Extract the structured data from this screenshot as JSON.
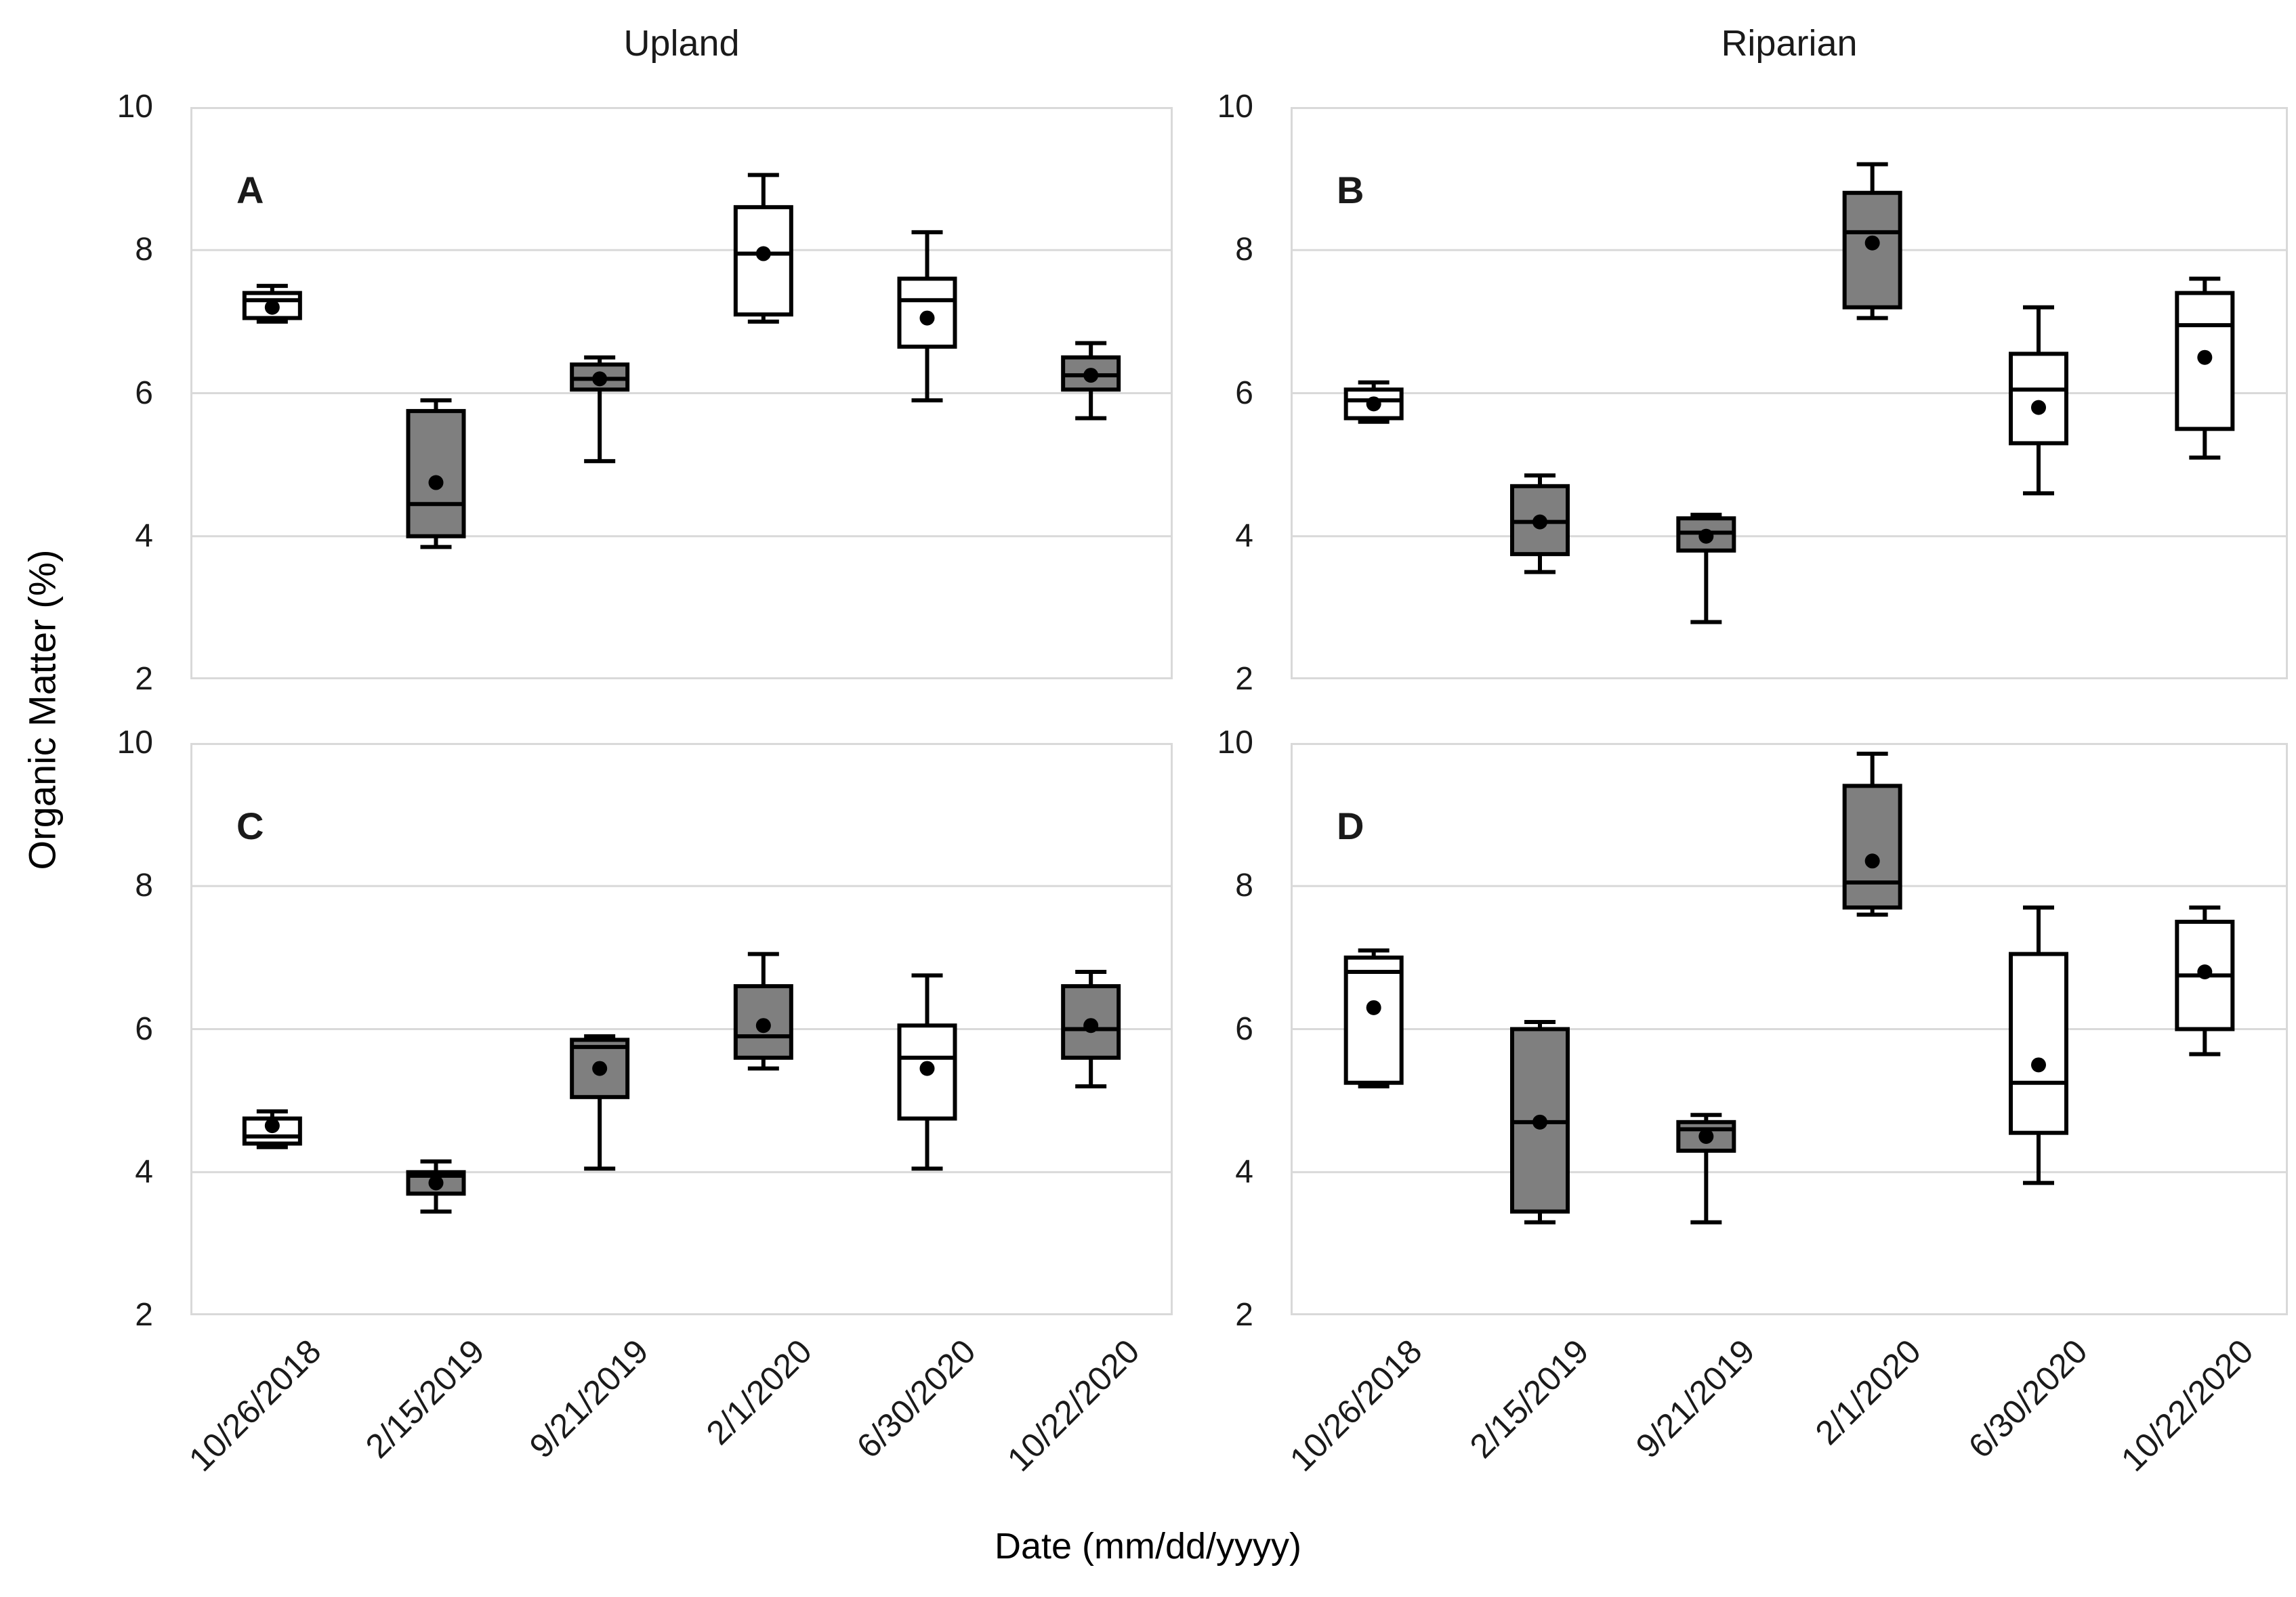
{
  "figure": {
    "column_titles": [
      "Upland",
      "Riparian"
    ],
    "xlabel": "Date (mm/dd/yyyy)",
    "ylabel": "Organic Matter (%)",
    "style": {
      "box_gray_fill": "#7f7f7f",
      "box_white_fill": "#ffffff",
      "box_stroke": "#000000",
      "gridline_color": "#d9d9d9",
      "mean_marker": "filled-circle"
    }
  },
  "chart_data": {
    "type": "box",
    "layout": "2x2-panels",
    "xlabel": "Date (mm/dd/yyyy)",
    "ylabel": "Organic Matter (%)",
    "ylim": [
      2,
      10
    ],
    "y_ticks": [
      10,
      8,
      6,
      4,
      2
    ],
    "grid": "horizontal-on",
    "categories": [
      "10/26/2018",
      "2/15/2019",
      "9/21/2019",
      "2/1/2020",
      "6/30/2020",
      "10/22/2020"
    ],
    "column_titles": [
      "Upland",
      "Riparian"
    ],
    "panels": [
      {
        "label": "A",
        "column": "Upland",
        "row": 0,
        "col": 0,
        "boxes": [
          {
            "date": "10/26/2018",
            "fill": "white",
            "min": 7.0,
            "q1": 7.05,
            "median": 7.3,
            "q3": 7.4,
            "max": 7.5,
            "mean": 7.2
          },
          {
            "date": "2/15/2019",
            "fill": "gray",
            "min": 3.85,
            "q1": 4.0,
            "median": 4.45,
            "q3": 5.75,
            "max": 5.9,
            "mean": 4.75
          },
          {
            "date": "9/21/2019",
            "fill": "gray",
            "min": 5.05,
            "q1": 6.05,
            "median": 6.2,
            "q3": 6.4,
            "max": 6.5,
            "mean": 6.2
          },
          {
            "date": "2/1/2020",
            "fill": "white",
            "min": 7.0,
            "q1": 7.1,
            "median": 7.95,
            "q3": 8.6,
            "max": 9.05,
            "mean": 7.95
          },
          {
            "date": "6/30/2020",
            "fill": "white",
            "min": 5.9,
            "q1": 6.65,
            "median": 7.3,
            "q3": 7.6,
            "max": 8.25,
            "mean": 7.05
          },
          {
            "date": "10/22/2020",
            "fill": "gray",
            "min": 5.65,
            "q1": 6.05,
            "median": 6.25,
            "q3": 6.5,
            "max": 6.7,
            "mean": 6.25
          }
        ]
      },
      {
        "label": "B",
        "column": "Riparian",
        "row": 0,
        "col": 1,
        "boxes": [
          {
            "date": "10/26/2018",
            "fill": "white",
            "min": 5.6,
            "q1": 5.65,
            "median": 5.9,
            "q3": 6.05,
            "max": 6.15,
            "mean": 5.85
          },
          {
            "date": "2/15/2019",
            "fill": "gray",
            "min": 3.5,
            "q1": 3.75,
            "median": 4.2,
            "q3": 4.7,
            "max": 4.85,
            "mean": 4.2
          },
          {
            "date": "9/21/2019",
            "fill": "gray",
            "min": 2.8,
            "q1": 3.8,
            "median": 4.05,
            "q3": 4.25,
            "max": 4.3,
            "mean": 4.0
          },
          {
            "date": "2/1/2020",
            "fill": "gray",
            "min": 7.05,
            "q1": 7.2,
            "median": 8.25,
            "q3": 8.8,
            "max": 9.2,
            "mean": 8.1
          },
          {
            "date": "6/30/2020",
            "fill": "white",
            "min": 4.6,
            "q1": 5.3,
            "median": 6.05,
            "q3": 6.55,
            "max": 7.2,
            "mean": 5.8
          },
          {
            "date": "10/22/2020",
            "fill": "white",
            "min": 5.1,
            "q1": 5.5,
            "median": 6.95,
            "q3": 7.4,
            "max": 7.6,
            "mean": 6.5
          }
        ]
      },
      {
        "label": "C",
        "column": "Upland",
        "row": 1,
        "col": 0,
        "boxes": [
          {
            "date": "10/26/2018",
            "fill": "white",
            "min": 4.35,
            "q1": 4.4,
            "median": 4.5,
            "q3": 4.75,
            "max": 4.85,
            "mean": 4.65
          },
          {
            "date": "2/15/2019",
            "fill": "gray",
            "min": 3.45,
            "q1": 3.7,
            "median": 3.95,
            "q3": 4.0,
            "max": 4.15,
            "mean": 3.85
          },
          {
            "date": "9/21/2019",
            "fill": "gray",
            "min": 4.05,
            "q1": 5.05,
            "median": 5.75,
            "q3": 5.85,
            "max": 5.9,
            "mean": 5.45
          },
          {
            "date": "2/1/2020",
            "fill": "gray",
            "min": 5.45,
            "q1": 5.6,
            "median": 5.9,
            "q3": 6.6,
            "max": 7.05,
            "mean": 6.05
          },
          {
            "date": "6/30/2020",
            "fill": "white",
            "min": 4.05,
            "q1": 4.75,
            "median": 5.6,
            "q3": 6.05,
            "max": 6.75,
            "mean": 5.45
          },
          {
            "date": "10/22/2020",
            "fill": "gray",
            "min": 5.2,
            "q1": 5.6,
            "median": 6.0,
            "q3": 6.6,
            "max": 6.8,
            "mean": 6.05
          }
        ]
      },
      {
        "label": "D",
        "column": "Riparian",
        "row": 1,
        "col": 1,
        "boxes": [
          {
            "date": "10/26/2018",
            "fill": "white",
            "min": 5.2,
            "q1": 5.25,
            "median": 6.8,
            "q3": 7.0,
            "max": 7.1,
            "mean": 6.3
          },
          {
            "date": "2/15/2019",
            "fill": "gray",
            "min": 3.3,
            "q1": 3.45,
            "median": 4.7,
            "q3": 6.0,
            "max": 6.1,
            "mean": 4.7
          },
          {
            "date": "9/21/2019",
            "fill": "gray",
            "min": 3.3,
            "q1": 4.3,
            "median": 4.6,
            "q3": 4.7,
            "max": 4.8,
            "mean": 4.5
          },
          {
            "date": "2/1/2020",
            "fill": "gray",
            "min": 7.6,
            "q1": 7.7,
            "median": 8.05,
            "q3": 9.4,
            "max": 9.85,
            "mean": 8.35
          },
          {
            "date": "6/30/2020",
            "fill": "white",
            "min": 3.85,
            "q1": 4.55,
            "median": 5.25,
            "q3": 7.05,
            "max": 7.7,
            "mean": 5.5
          },
          {
            "date": "10/22/2020",
            "fill": "white",
            "min": 5.65,
            "q1": 6.0,
            "median": 6.75,
            "q3": 7.5,
            "max": 7.7,
            "mean": 6.8
          }
        ]
      }
    ]
  }
}
